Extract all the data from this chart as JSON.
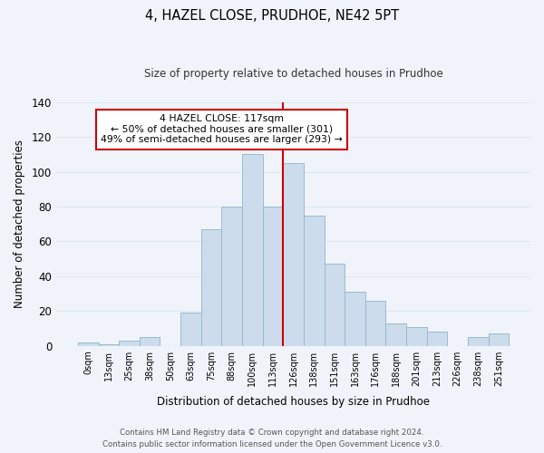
{
  "title": "4, HAZEL CLOSE, PRUDHOE, NE42 5PT",
  "subtitle": "Size of property relative to detached houses in Prudhoe",
  "xlabel": "Distribution of detached houses by size in Prudhoe",
  "ylabel": "Number of detached properties",
  "bar_labels": [
    "0sqm",
    "13sqm",
    "25sqm",
    "38sqm",
    "50sqm",
    "63sqm",
    "75sqm",
    "88sqm",
    "100sqm",
    "113sqm",
    "126sqm",
    "138sqm",
    "151sqm",
    "163sqm",
    "176sqm",
    "188sqm",
    "201sqm",
    "213sqm",
    "226sqm",
    "238sqm",
    "251sqm"
  ],
  "bar_values": [
    2,
    1,
    3,
    5,
    0,
    19,
    67,
    80,
    110,
    80,
    105,
    75,
    47,
    31,
    26,
    13,
    11,
    8,
    0,
    5,
    7
  ],
  "bar_color": "#ccdcec",
  "bar_edge_color": "#99bbcc",
  "vline_x_index": 10,
  "vline_color": "#cc0000",
  "annotation_title": "4 HAZEL CLOSE: 117sqm",
  "annotation_line1": "← 50% of detached houses are smaller (301)",
  "annotation_line2": "49% of semi-detached houses are larger (293) →",
  "annotation_box_color": "#ffffff",
  "annotation_box_edge": "#cc0000",
  "ylim": [
    0,
    140
  ],
  "yticks": [
    0,
    20,
    40,
    60,
    80,
    100,
    120,
    140
  ],
  "footnote1": "Contains HM Land Registry data © Crown copyright and database right 2024.",
  "footnote2": "Contains public sector information licensed under the Open Government Licence v3.0.",
  "grid_color": "#dde8f0",
  "background_color": "#f0f4fa"
}
